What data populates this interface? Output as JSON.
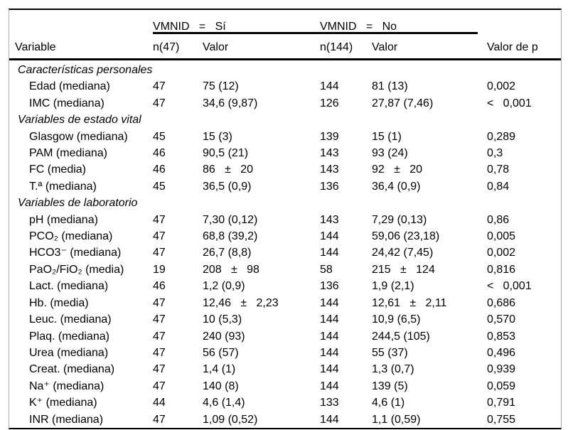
{
  "page": {
    "background": "#ffffff",
    "rule_color": "#000000",
    "side_border_color": "#ababab"
  },
  "table": {
    "group_headers": [
      "VMNID   =   Sí",
      "VMNID   =   No"
    ],
    "columns": [
      "Variable",
      "n(47)",
      "Valor",
      "n(144)",
      "Valor",
      "Valor de p"
    ],
    "rows": [
      {
        "type": "section",
        "label": "Características personales"
      },
      {
        "type": "data",
        "label": "Edad (mediana)",
        "n_si": "47",
        "valor_si": "75 (12)",
        "n_no": "144",
        "valor_no": "81 (13)",
        "p": "0,002"
      },
      {
        "type": "data",
        "label": "IMC (mediana)",
        "n_si": "47",
        "valor_si": "34,6 (9,87)",
        "n_no": "126",
        "valor_no": "27,87 (7,46)",
        "p": "<   0,001"
      },
      {
        "type": "section",
        "label": "Variables de estado vital"
      },
      {
        "type": "data",
        "label": "Glasgow (mediana)",
        "n_si": "45",
        "valor_si": "15 (3)",
        "n_no": "139",
        "valor_no": "15 (1)",
        "p": "0,289"
      },
      {
        "type": "data",
        "label": "PAM (mediana)",
        "n_si": "46",
        "valor_si": "90,5 (21)",
        "n_no": "143",
        "valor_no": "93 (24)",
        "p": "0,3"
      },
      {
        "type": "data",
        "label": "FC (media)",
        "n_si": "46",
        "valor_si": "86   ±   20",
        "n_no": "143",
        "valor_no": "92   ±   20",
        "p": "0,78"
      },
      {
        "type": "data",
        "label": "T.ª (mediana)",
        "n_si": "45",
        "valor_si": "36,5 (0,9)",
        "n_no": "136",
        "valor_no": "36,4 (0,9)",
        "p": "0,84"
      },
      {
        "type": "section",
        "label": "Variables de laboratorio"
      },
      {
        "type": "data",
        "label": "pH (mediana)",
        "n_si": "47",
        "valor_si": "7,30 (0,12)",
        "n_no": "143",
        "valor_no": "7,29 (0,13)",
        "p": "0,86"
      },
      {
        "type": "data",
        "label": "PCO₂ (mediana)",
        "n_si": "47",
        "valor_si": "68,8 (39,2)",
        "n_no": "144",
        "valor_no": "59,06 (23,18)",
        "p": "0,005"
      },
      {
        "type": "data",
        "label": "HCO3⁻ (mediana)",
        "n_si": "47",
        "valor_si": "26,7 (8,8)",
        "n_no": "144",
        "valor_no": "24,42 (7,45)",
        "p": "0,002"
      },
      {
        "type": "data",
        "label": "PaO₂/FiO₂ (media)",
        "n_si": "19",
        "valor_si": "208   ±   98",
        "n_no": "58",
        "valor_no": "215   ±   124",
        "p": "0,816"
      },
      {
        "type": "data",
        "label": "Lact. (mediana)",
        "n_si": "46",
        "valor_si": "1,2 (0,9)",
        "n_no": "136",
        "valor_no": "1,9 (2,1)",
        "p": "<   0,001"
      },
      {
        "type": "data",
        "label": "Hb. (media)",
        "n_si": "47",
        "valor_si": "12,46   ±   2,23",
        "n_no": "144",
        "valor_no": "12,61   ±   2,11",
        "p": "0,686"
      },
      {
        "type": "data",
        "label": "Leuc. (mediana)",
        "n_si": "47",
        "valor_si": "10 (5,3)",
        "n_no": "144",
        "valor_no": "10,9 (6,5)",
        "p": "0,570"
      },
      {
        "type": "data",
        "label": "Plaq. (mediana)",
        "n_si": "47",
        "valor_si": "240 (93)",
        "n_no": "144",
        "valor_no": "244,5 (105)",
        "p": "0,853"
      },
      {
        "type": "data",
        "label": "Urea (mediana)",
        "n_si": "47",
        "valor_si": "56 (57)",
        "n_no": "144",
        "valor_no": "55 (37)",
        "p": "0,496"
      },
      {
        "type": "data",
        "label": "Creat. (mediana)",
        "n_si": "47",
        "valor_si": "1,4 (1)",
        "n_no": "144",
        "valor_no": "1,3 (0,7)",
        "p": "0,939"
      },
      {
        "type": "data",
        "label": "Na⁺ (mediana)",
        "n_si": "47",
        "valor_si": "140 (8)",
        "n_no": "144",
        "valor_no": "139 (5)",
        "p": "0,059"
      },
      {
        "type": "data",
        "label": "K⁺ (mediana)",
        "n_si": "44",
        "valor_si": "4,6 (1,4)",
        "n_no": "133",
        "valor_no": "4,6 (1)",
        "p": "0,791"
      },
      {
        "type": "data",
        "label": "INR (mediana)",
        "n_si": "47",
        "valor_si": "1,09 (0,52)",
        "n_no": "144",
        "valor_no": "1,1 (0,59)",
        "p": "0,755"
      }
    ]
  }
}
